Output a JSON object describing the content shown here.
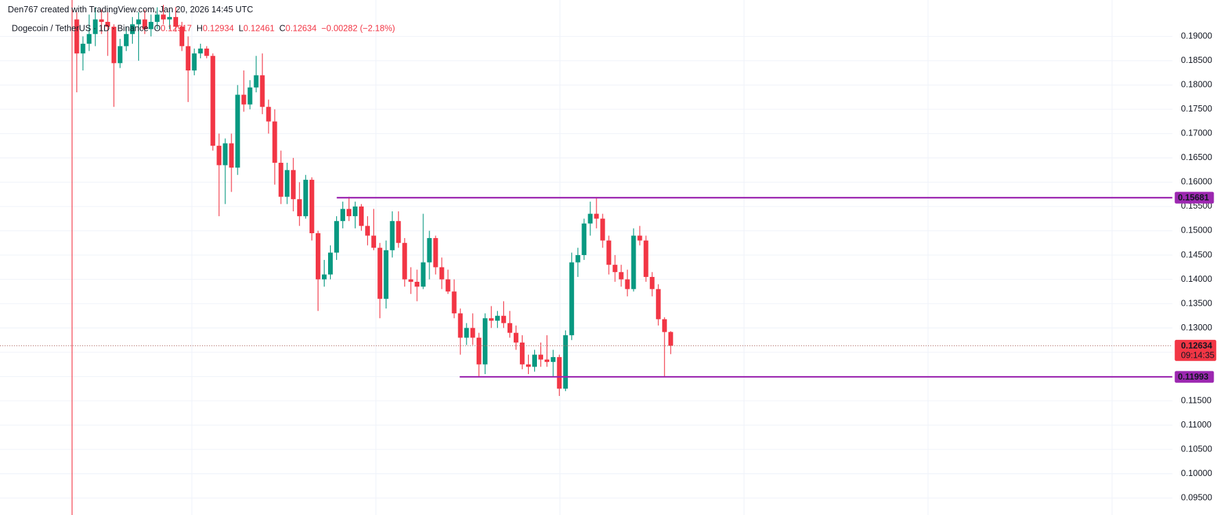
{
  "chart_data": {
    "type": "candlestick",
    "author": "Den767 created with TradingView.com, Jan 20, 2026 14:45 UTC",
    "title": "Dogecoin / TetherUS · 1D · Binance",
    "legend": [
      {
        "label": "O",
        "value": "0.12917"
      },
      {
        "label": "H",
        "value": "0.12934"
      },
      {
        "label": "L",
        "value": "0.12461"
      },
      {
        "label": "C",
        "value": "0.12634"
      }
    ],
    "change": "−0.00282 (−2.18%)",
    "up_color": "#089981",
    "down_color": "#f23645",
    "grid": true,
    "ylim": [
      0.0915,
      0.1975
    ],
    "yticks": [
      {
        "value": 0.095,
        "label": "0.09500"
      },
      {
        "value": 0.1,
        "label": "0.10000"
      },
      {
        "value": 0.105,
        "label": "0.10500"
      },
      {
        "value": 0.11,
        "label": "0.11000"
      },
      {
        "value": 0.115,
        "label": "0.11500"
      },
      {
        "value": 0.12,
        "label": "0.12000"
      },
      {
        "value": 0.125,
        "label": "0.12500"
      },
      {
        "value": 0.13,
        "label": "0.13000"
      },
      {
        "value": 0.135,
        "label": "0.13500"
      },
      {
        "value": 0.14,
        "label": "0.14000"
      },
      {
        "value": 0.145,
        "label": "0.14500"
      },
      {
        "value": 0.15,
        "label": "0.15000"
      },
      {
        "value": 0.155,
        "label": "0.15500"
      },
      {
        "value": 0.16,
        "label": "0.16000"
      },
      {
        "value": 0.165,
        "label": "0.16500"
      },
      {
        "value": 0.17,
        "label": "0.17000"
      },
      {
        "value": 0.175,
        "label": "0.17500"
      },
      {
        "value": 0.18,
        "label": "0.18000"
      },
      {
        "value": 0.185,
        "label": "0.18500"
      },
      {
        "value": 0.19,
        "label": "0.19000"
      }
    ],
    "levels": [
      {
        "value": 0.15681,
        "color": "#9c27b0"
      },
      {
        "value": 0.11993,
        "color": "#9c27b0"
      }
    ],
    "last_price": 0.12634,
    "countdown": "09:14:35",
    "ohlc": [
      [
        0.1935,
        0.195,
        0.1785,
        0.1865
      ],
      [
        0.1865,
        0.19,
        0.183,
        0.1885
      ],
      [
        0.1885,
        0.1945,
        0.187,
        0.1905
      ],
      [
        0.1905,
        0.196,
        0.188,
        0.1935
      ],
      [
        0.1935,
        0.1955,
        0.1905,
        0.193
      ],
      [
        0.193,
        0.195,
        0.186,
        0.192
      ],
      [
        0.192,
        0.1925,
        0.1755,
        0.1845
      ],
      [
        0.1845,
        0.1895,
        0.1835,
        0.188
      ],
      [
        0.188,
        0.192,
        0.187,
        0.1905
      ],
      [
        0.1905,
        0.194,
        0.1885,
        0.1925
      ],
      [
        0.1925,
        0.195,
        0.185,
        0.1935
      ],
      [
        0.1935,
        0.1955,
        0.1905,
        0.1915
      ],
      [
        0.1915,
        0.1945,
        0.19,
        0.193
      ],
      [
        0.193,
        0.196,
        0.1915,
        0.1945
      ],
      [
        0.1945,
        0.1965,
        0.1925,
        0.1935
      ],
      [
        0.1935,
        0.1955,
        0.1915,
        0.194
      ],
      [
        0.194,
        0.196,
        0.191,
        0.192
      ],
      [
        0.192,
        0.193,
        0.187,
        0.188
      ],
      [
        0.188,
        0.19,
        0.1765,
        0.183
      ],
      [
        0.183,
        0.1875,
        0.182,
        0.1865
      ],
      [
        0.1865,
        0.1885,
        0.1855,
        0.1875
      ],
      [
        0.1875,
        0.188,
        0.1855,
        0.186
      ],
      [
        0.186,
        0.1865,
        0.1665,
        0.1675
      ],
      [
        0.1675,
        0.17,
        0.153,
        0.1635
      ],
      [
        0.1635,
        0.169,
        0.1555,
        0.168
      ],
      [
        0.168,
        0.17,
        0.158,
        0.163
      ],
      [
        0.163,
        0.18,
        0.1615,
        0.178
      ],
      [
        0.178,
        0.183,
        0.1745,
        0.176
      ],
      [
        0.176,
        0.181,
        0.175,
        0.1795
      ],
      [
        0.1795,
        0.186,
        0.1785,
        0.182
      ],
      [
        0.182,
        0.1865,
        0.174,
        0.1755
      ],
      [
        0.1755,
        0.177,
        0.17,
        0.1725
      ],
      [
        0.1725,
        0.175,
        0.1595,
        0.164
      ],
      [
        0.164,
        0.1665,
        0.1555,
        0.157
      ],
      [
        0.157,
        0.164,
        0.1555,
        0.1625
      ],
      [
        0.1625,
        0.165,
        0.154,
        0.1565
      ],
      [
        0.1565,
        0.16,
        0.151,
        0.153
      ],
      [
        0.153,
        0.1615,
        0.1525,
        0.1605
      ],
      [
        0.1605,
        0.161,
        0.148,
        0.1495
      ],
      [
        0.1495,
        0.15,
        0.1335,
        0.14
      ],
      [
        0.14,
        0.144,
        0.1385,
        0.141
      ],
      [
        0.141,
        0.147,
        0.14,
        0.1455
      ],
      [
        0.1455,
        0.153,
        0.144,
        0.152
      ],
      [
        0.152,
        0.156,
        0.1505,
        0.1545
      ],
      [
        0.1545,
        0.157,
        0.152,
        0.153
      ],
      [
        0.153,
        0.156,
        0.1505,
        0.155
      ],
      [
        0.155,
        0.1555,
        0.15,
        0.151
      ],
      [
        0.151,
        0.153,
        0.147,
        0.149
      ],
      [
        0.149,
        0.1545,
        0.146,
        0.1465
      ],
      [
        0.1465,
        0.1475,
        0.132,
        0.136
      ],
      [
        0.136,
        0.148,
        0.134,
        0.146
      ],
      [
        0.146,
        0.154,
        0.1445,
        0.152
      ],
      [
        0.152,
        0.154,
        0.1465,
        0.1475
      ],
      [
        0.1475,
        0.1485,
        0.1385,
        0.14
      ],
      [
        0.14,
        0.1425,
        0.137,
        0.1395
      ],
      [
        0.1395,
        0.142,
        0.1355,
        0.1385
      ],
      [
        0.1385,
        0.1535,
        0.138,
        0.1435
      ],
      [
        0.1435,
        0.15,
        0.14,
        0.1485
      ],
      [
        0.1485,
        0.149,
        0.141,
        0.1425
      ],
      [
        0.1425,
        0.1445,
        0.138,
        0.14
      ],
      [
        0.14,
        0.142,
        0.137,
        0.1375
      ],
      [
        0.1375,
        0.14,
        0.132,
        0.133
      ],
      [
        0.133,
        0.134,
        0.1245,
        0.128
      ],
      [
        0.128,
        0.131,
        0.1265,
        0.13
      ],
      [
        0.13,
        0.133,
        0.1265,
        0.128
      ],
      [
        0.128,
        0.129,
        0.12,
        0.1225
      ],
      [
        0.1225,
        0.133,
        0.1205,
        0.132
      ],
      [
        0.132,
        0.1345,
        0.13,
        0.1315
      ],
      [
        0.1315,
        0.1335,
        0.13,
        0.1325
      ],
      [
        0.1325,
        0.1355,
        0.13,
        0.131
      ],
      [
        0.131,
        0.1335,
        0.128,
        0.129
      ],
      [
        0.129,
        0.1305,
        0.1255,
        0.127
      ],
      [
        0.127,
        0.1285,
        0.1215,
        0.1225
      ],
      [
        0.1225,
        0.1245,
        0.1205,
        0.122
      ],
      [
        0.122,
        0.1255,
        0.121,
        0.1245
      ],
      [
        0.1245,
        0.127,
        0.122,
        0.1235
      ],
      [
        0.1235,
        0.1285,
        0.122,
        0.123
      ],
      [
        0.123,
        0.1255,
        0.12,
        0.124
      ],
      [
        0.124,
        0.1245,
        0.116,
        0.1175
      ],
      [
        0.1175,
        0.1295,
        0.117,
        0.1285
      ],
      [
        0.1285,
        0.1455,
        0.1275,
        0.1435
      ],
      [
        0.1435,
        0.1465,
        0.1405,
        0.145
      ],
      [
        0.145,
        0.1525,
        0.144,
        0.1515
      ],
      [
        0.1515,
        0.156,
        0.149,
        0.1535
      ],
      [
        0.1535,
        0.1568,
        0.1505,
        0.1525
      ],
      [
        0.1525,
        0.1535,
        0.1465,
        0.148
      ],
      [
        0.148,
        0.149,
        0.141,
        0.143
      ],
      [
        0.143,
        0.145,
        0.1395,
        0.1415
      ],
      [
        0.1415,
        0.143,
        0.1385,
        0.14
      ],
      [
        0.14,
        0.142,
        0.1365,
        0.138
      ],
      [
        0.138,
        0.1505,
        0.1375,
        0.149
      ],
      [
        0.149,
        0.151,
        0.147,
        0.148
      ],
      [
        0.148,
        0.149,
        0.1395,
        0.1405
      ],
      [
        0.1405,
        0.1415,
        0.1365,
        0.138
      ],
      [
        0.138,
        0.139,
        0.1305,
        0.1318
      ],
      [
        0.1318,
        0.1322,
        0.11993,
        0.12916
      ],
      [
        0.12917,
        0.12934,
        0.12461,
        0.12634
      ]
    ]
  }
}
